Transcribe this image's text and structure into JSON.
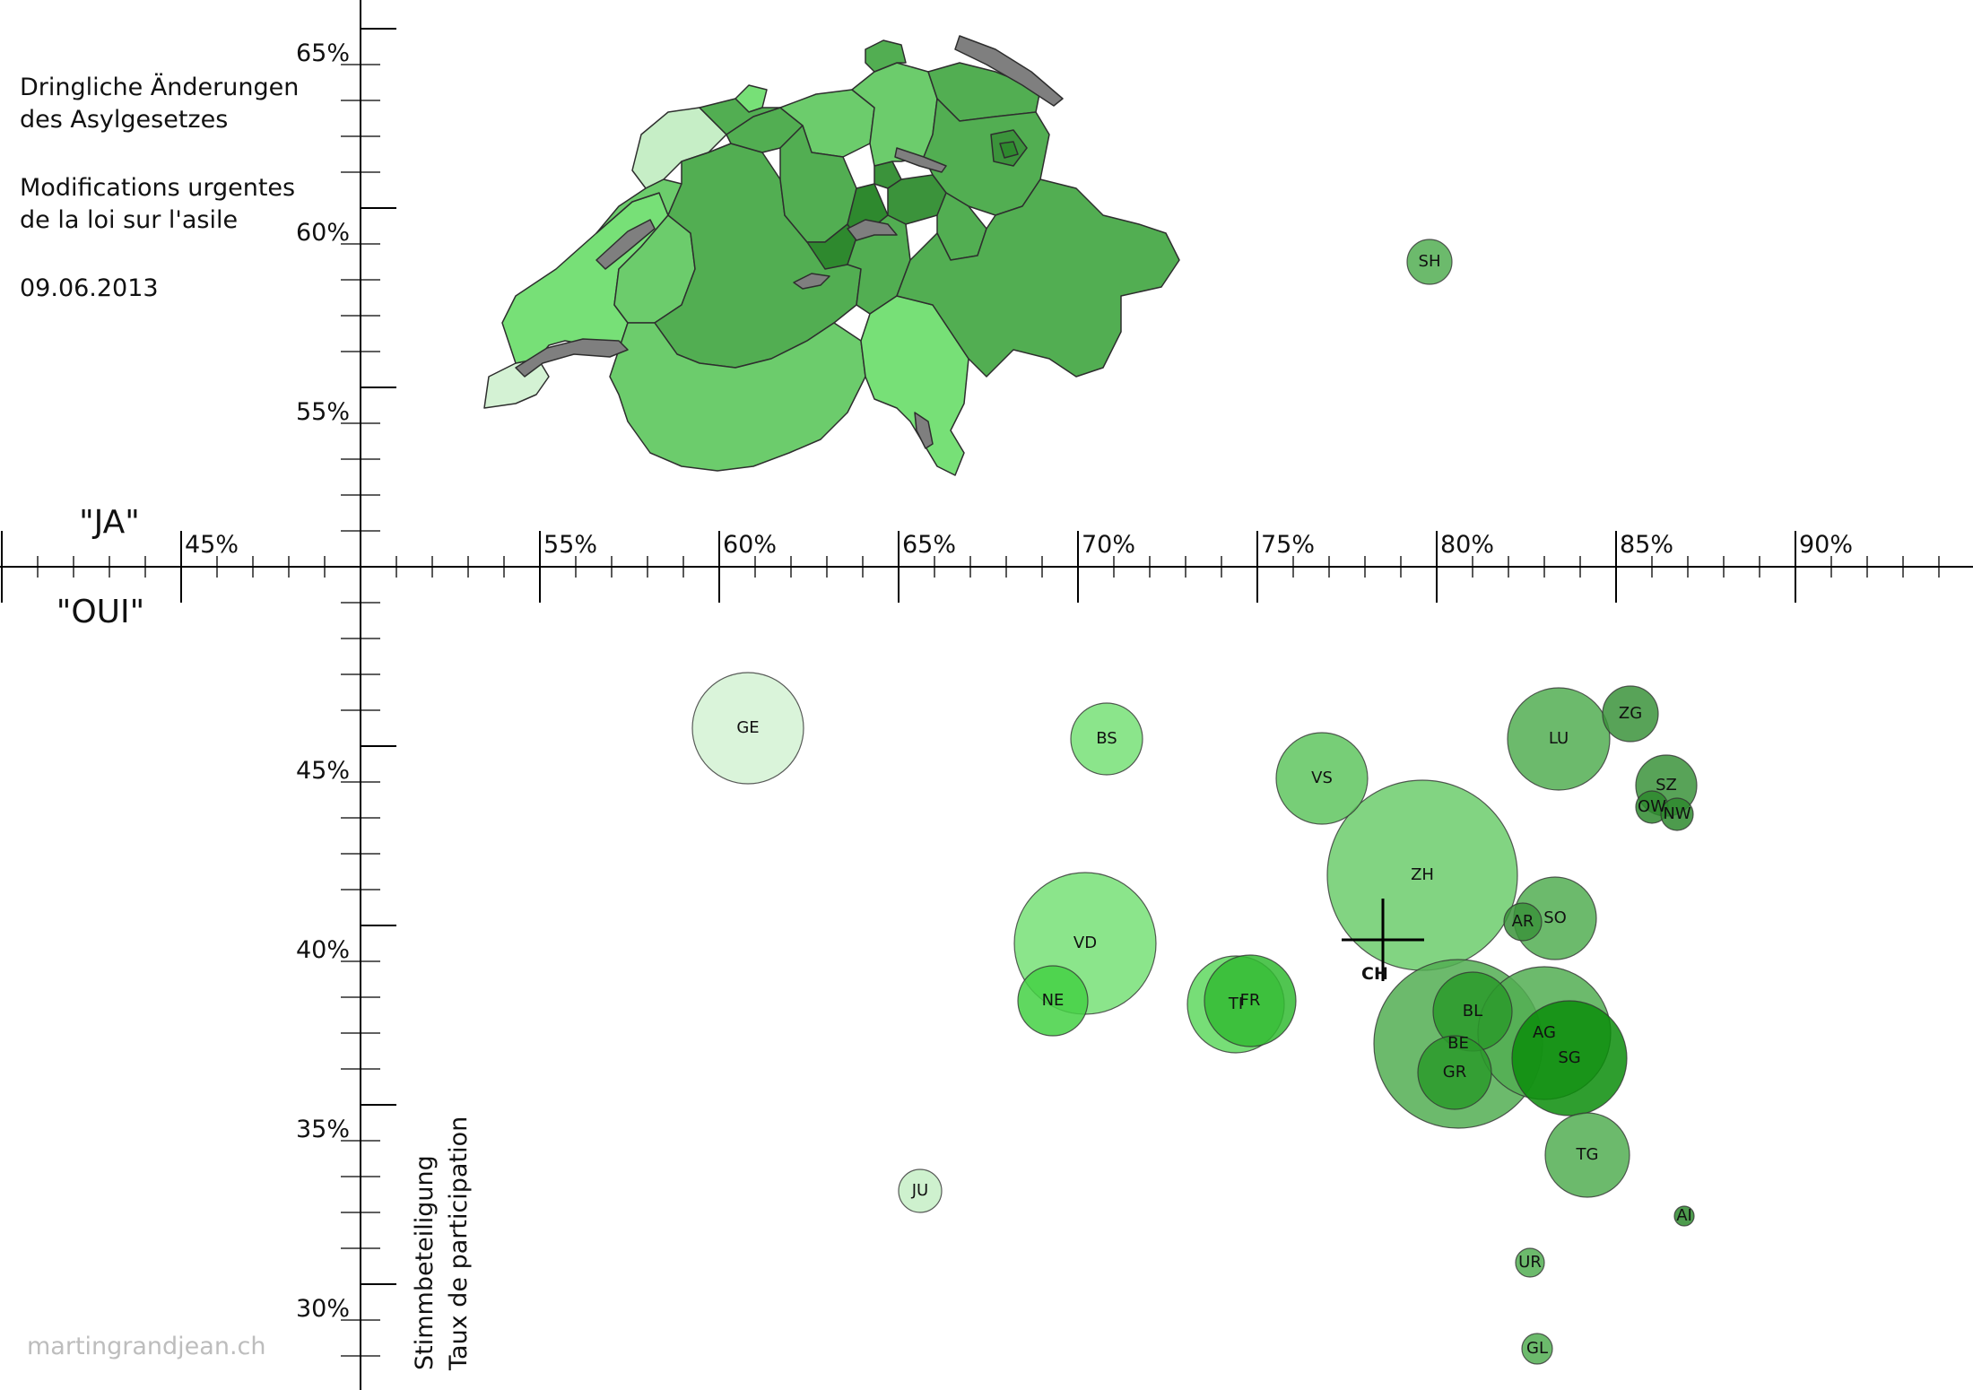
{
  "title": {
    "de_line1": "Dringliche Änderungen",
    "de_line2": "des Asylgesetzes",
    "fr_line1": "Modifications urgentes",
    "fr_line2": "de la loi sur l'asile",
    "date": "09.06.2013"
  },
  "quadrant": {
    "ja": "\"JA\"",
    "oui": "\"OUI\""
  },
  "ylabel": {
    "de": "Stimmbeteiligung",
    "fr": "Taux de participation"
  },
  "credit": "martingrandjean.ch",
  "colors": {
    "map_stroke": "#2e2e2e",
    "lake": "#7f7f7f",
    "axis": "#000000"
  },
  "chart_data": {
    "type": "scatter",
    "subtype": "bubble",
    "x_axis": {
      "ticks": [
        "45%",
        "55%",
        "60%",
        "65%",
        "70%",
        "75%",
        "80%",
        "85%",
        "90%"
      ]
    },
    "y_axis": {
      "ticks": [
        "65%",
        "60%",
        "55%",
        "45%",
        "40%",
        "35%",
        "30%"
      ]
    },
    "xlim": [
      40,
      95
    ],
    "ylim": [
      28,
      66
    ],
    "gap": [
      48.6,
      51.5
    ],
    "points": [
      {
        "label": "GE",
        "x": 60.8,
        "y": 45.5,
        "r": 62,
        "color": "#d4f2d4"
      },
      {
        "label": "BS",
        "x": 70.8,
        "y": 45.2,
        "r": 40,
        "color": "#77e077"
      },
      {
        "label": "VS",
        "x": 76.8,
        "y": 44.1,
        "r": 51,
        "color": "#5fc55f"
      },
      {
        "label": "LU",
        "x": 83.4,
        "y": 45.2,
        "r": 57,
        "color": "#52ae52"
      },
      {
        "label": "ZG",
        "x": 85.4,
        "y": 45.9,
        "r": 31,
        "color": "#3b933b"
      },
      {
        "label": "SZ",
        "x": 86.4,
        "y": 43.9,
        "r": 34,
        "color": "#3b933b"
      },
      {
        "label": "OW",
        "x": 86.0,
        "y": 43.3,
        "r": 18,
        "color": "#2e892e"
      },
      {
        "label": "NW",
        "x": 86.7,
        "y": 43.1,
        "r": 18,
        "color": "#2e892e"
      },
      {
        "label": "ZH",
        "x": 79.6,
        "y": 41.4,
        "r": 106,
        "color": "#6ccc6c"
      },
      {
        "label": "AR",
        "x": 82.4,
        "y": 40.1,
        "r": 21,
        "color": "#3b933b"
      },
      {
        "label": "SO",
        "x": 83.3,
        "y": 40.2,
        "r": 46,
        "color": "#52ae52"
      },
      {
        "label": "VD",
        "x": 70.2,
        "y": 39.5,
        "r": 79,
        "color": "#77e077"
      },
      {
        "label": "NE",
        "x": 69.3,
        "y": 37.9,
        "r": 39,
        "color": "#44d144"
      },
      {
        "label": "TI",
        "x": 74.4,
        "y": 37.8,
        "r": 54,
        "color": "#5fd85f"
      },
      {
        "label": "FR",
        "x": 74.8,
        "y": 37.9,
        "r": 51,
        "color": "#33bb33"
      },
      {
        "label": "BE",
        "x": 80.6,
        "y": 36.7,
        "r": 94,
        "color": "#52ae52"
      },
      {
        "label": "AG",
        "x": 83.0,
        "y": 37.0,
        "r": 74,
        "color": "#52ae52"
      },
      {
        "label": "BL",
        "x": 81.0,
        "y": 37.6,
        "r": 44,
        "color": "#2a9a2a"
      },
      {
        "label": "SG",
        "x": 83.7,
        "y": 36.3,
        "r": 64,
        "color": "#0b8d0b"
      },
      {
        "label": "GR",
        "x": 80.5,
        "y": 35.9,
        "r": 41,
        "color": "#2a9a2a"
      },
      {
        "label": "TG",
        "x": 84.2,
        "y": 33.6,
        "r": 47,
        "color": "#52ae52"
      },
      {
        "label": "JU",
        "x": 65.6,
        "y": 32.6,
        "r": 24,
        "color": "#c6eec6"
      },
      {
        "label": "AI",
        "x": 86.9,
        "y": 31.9,
        "r": 11,
        "color": "#2e892e"
      },
      {
        "label": "UR",
        "x": 82.6,
        "y": 30.6,
        "r": 16,
        "color": "#52ae52"
      },
      {
        "label": "GL",
        "x": 82.8,
        "y": 28.2,
        "r": 17,
        "color": "#52ae52"
      },
      {
        "label": "SH",
        "x": 79.8,
        "y": 58.5,
        "r": 25,
        "color": "#52ae52"
      }
    ],
    "marker": {
      "label": "CH",
      "x": 78.5,
      "y": 39.6
    }
  }
}
